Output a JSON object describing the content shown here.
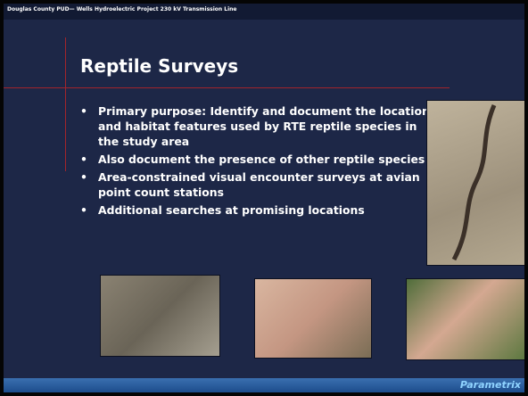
{
  "header": "Douglas County PUD— Wells Hydroelectric Project 230 kV Transmission Line",
  "title": "Reptile Surveys",
  "bullets": [
    "Primary purpose:  Identify and document the location and habitat features used by RTE reptile species in the study area",
    "Also document the presence of other reptile species",
    "Area-constrained visual encounter surveys at avian point count stations",
    "Additional searches at promising locations"
  ],
  "footer": "Parametrix"
}
